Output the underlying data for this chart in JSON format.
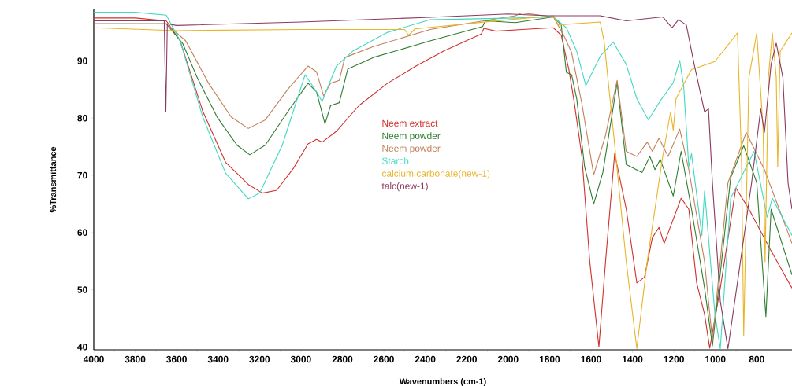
{
  "chart_data": {
    "type": "line",
    "xlabel": "Wavenumbers (cm-1)",
    "ylabel": "%Transmittance",
    "xlim": [
      4000,
      630
    ],
    "ylim": [
      39.5,
      99
    ],
    "xticks": [
      4000,
      3800,
      3600,
      3400,
      3200,
      3000,
      2800,
      2600,
      2400,
      2200,
      2000,
      1800,
      1600,
      1400,
      1200,
      1000,
      800
    ],
    "yticks": [
      40,
      50,
      60,
      70,
      80,
      90
    ],
    "legend": "center",
    "series": [
      {
        "name": "Neem extract",
        "color": "#d0312d",
        "x": [
          4000,
          3800,
          3650,
          3583,
          3474,
          3364,
          3254,
          3186,
          3117,
          3035,
          2966,
          2925,
          2898,
          2829,
          2720,
          2582,
          2445,
          2308,
          2130,
          2117,
          2059,
          1933,
          1782,
          1744,
          1707,
          1682,
          1644,
          1606,
          1562,
          1530,
          1486,
          1430,
          1379,
          1342,
          1304,
          1272,
          1247,
          1165,
          1128,
          1090,
          1052,
          1027,
          976,
          901,
          838,
          737,
          630
        ],
        "values": [
          97.5,
          97.5,
          97,
          93.5,
          81.2,
          72.3,
          68.4,
          66.9,
          67.4,
          71.3,
          75.5,
          76.3,
          75.8,
          77.7,
          82.2,
          86.1,
          89.1,
          91.8,
          94.7,
          95.7,
          95.2,
          95.5,
          95.8,
          94.5,
          88.5,
          83,
          73.3,
          54.9,
          40,
          54.9,
          73.8,
          64.1,
          51.2,
          52.2,
          59.1,
          60.9,
          58.1,
          66,
          64.1,
          51.2,
          45.7,
          39.8,
          50.3,
          67.8,
          64.1,
          57.2,
          50.3
        ]
      },
      {
        "name": "Neem powder",
        "color": "#2e7d32",
        "x": [
          4000,
          3800,
          3650,
          3570,
          3501,
          3405,
          3309,
          3247,
          3172,
          3062,
          2966,
          2925,
          2884,
          2857,
          2815,
          2774,
          2651,
          2377,
          2123,
          2110,
          1965,
          1782,
          1744,
          1719,
          1694,
          1669,
          1631,
          1587,
          1543,
          1474,
          1430,
          1354,
          1316,
          1291,
          1266,
          1203,
          1165,
          1115,
          1052,
          1014,
          926,
          863,
          800,
          756,
          731,
          630
        ],
        "values": [
          96.5,
          96.5,
          96.5,
          93,
          87.1,
          80.2,
          75.3,
          73.6,
          75.3,
          81.2,
          86.1,
          84.6,
          79,
          82.2,
          82.7,
          88.6,
          90.6,
          93.5,
          96,
          97,
          96.7,
          97.7,
          96.3,
          88,
          87.6,
          83.4,
          71.5,
          65,
          70.5,
          86.2,
          71.9,
          70.5,
          73.3,
          71,
          72.8,
          66.4,
          74.2,
          64.1,
          50.3,
          40.2,
          69.6,
          75.2,
          68.7,
          45.3,
          64.1,
          52.6
        ]
      },
      {
        "name": "Neem powder",
        "color": "#c0825a",
        "x": [
          4000,
          3800,
          3650,
          3556,
          3446,
          3337,
          3254,
          3172,
          3062,
          2966,
          2925,
          2891,
          2857,
          2815,
          2788,
          2651,
          2377,
          1965,
          1933,
          1782,
          1732,
          1694,
          1644,
          1587,
          1530,
          1474,
          1430,
          1379,
          1329,
          1304,
          1272,
          1228,
          1172,
          1128,
          1052,
          1014,
          939,
          851,
          763,
          630
        ],
        "values": [
          96.5,
          96.5,
          96.5,
          93.5,
          86.1,
          80.2,
          78.2,
          79.7,
          85.1,
          89.1,
          88.1,
          83.9,
          86.1,
          86.6,
          90.6,
          92.5,
          95.5,
          97.9,
          98.4,
          97.7,
          94.5,
          91.5,
          82.5,
          70.1,
          77,
          86.6,
          74.2,
          73.3,
          75.8,
          74.2,
          76.5,
          73.3,
          78.1,
          71,
          54.9,
          41.1,
          68.7,
          77.5,
          71,
          58.1
        ]
      },
      {
        "name": "Starch",
        "color": "#40d8c0",
        "x": [
          4000,
          3800,
          3650,
          3583,
          3474,
          3364,
          3254,
          3199,
          3090,
          2980,
          2925,
          2898,
          2829,
          2747,
          2582,
          2377,
          1965,
          1782,
          1719,
          1669,
          1625,
          1556,
          1493,
          1430,
          1379,
          1323,
          1266,
          1203,
          1172,
          1153,
          1128,
          1115,
          1065,
          1052,
          1002,
          976,
          926,
          813,
          750,
          725,
          630
        ],
        "values": [
          98.5,
          98.5,
          98,
          93.5,
          80.2,
          70.4,
          65.9,
          66.9,
          75.3,
          87.6,
          84.6,
          82.9,
          89.1,
          91.8,
          95,
          97.2,
          97.5,
          97.7,
          95.8,
          91.7,
          85.7,
          90.8,
          93.3,
          89.4,
          83.4,
          79.7,
          83,
          86.2,
          90.1,
          85.7,
          71.5,
          73.8,
          59.5,
          67.3,
          45.7,
          39.7,
          66,
          74.2,
          62.7,
          66,
          59.5
        ]
      },
      {
        "name": "calcium carbonate(new-1)",
        "color": "#e8b428",
        "x": [
          4000,
          3600,
          3000,
          2500,
          2480,
          2450,
          2000,
          1782,
          1757,
          1556,
          1537,
          1480,
          1430,
          1379,
          1329,
          1254,
          1216,
          1203,
          1190,
          1115,
          1002,
          893,
          874,
          863,
          838,
          800,
          769,
          760,
          744,
          725,
          706,
          699,
          687,
          630
        ],
        "values": [
          95.8,
          95.3,
          95.5,
          95.5,
          94.5,
          95.6,
          97.2,
          97.9,
          96.3,
          96.8,
          93.5,
          73.3,
          54.9,
          39.7,
          54.9,
          73.3,
          81.1,
          77.9,
          83.4,
          88.5,
          89.9,
          94.9,
          73.3,
          42,
          87.1,
          94.9,
          77.9,
          54.9,
          87.1,
          94.9,
          87.1,
          71.5,
          91.7,
          94.9
        ]
      },
      {
        "name": "talc(new-1)",
        "color": "#8b3a62",
        "x": [
          4000,
          3700,
          3660,
          3652,
          3645,
          3600,
          3000,
          2400,
          2000,
          1807,
          1556,
          1430,
          1254,
          1209,
          1178,
          1140,
          1102,
          1052,
          1033,
          1014,
          976,
          939,
          888,
          825,
          781,
          763,
          731,
          706,
          674,
          649,
          630
        ],
        "values": [
          97,
          97,
          97,
          81.2,
          96.5,
          96.2,
          96.8,
          97.6,
          98.2,
          97.9,
          97.9,
          97,
          97.7,
          95.8,
          97.2,
          96.3,
          89.4,
          81.1,
          81.6,
          68.7,
          48,
          39.7,
          52.6,
          68.7,
          81.6,
          77.5,
          89.4,
          93.1,
          87.1,
          68.7,
          64.1
        ]
      }
    ]
  }
}
